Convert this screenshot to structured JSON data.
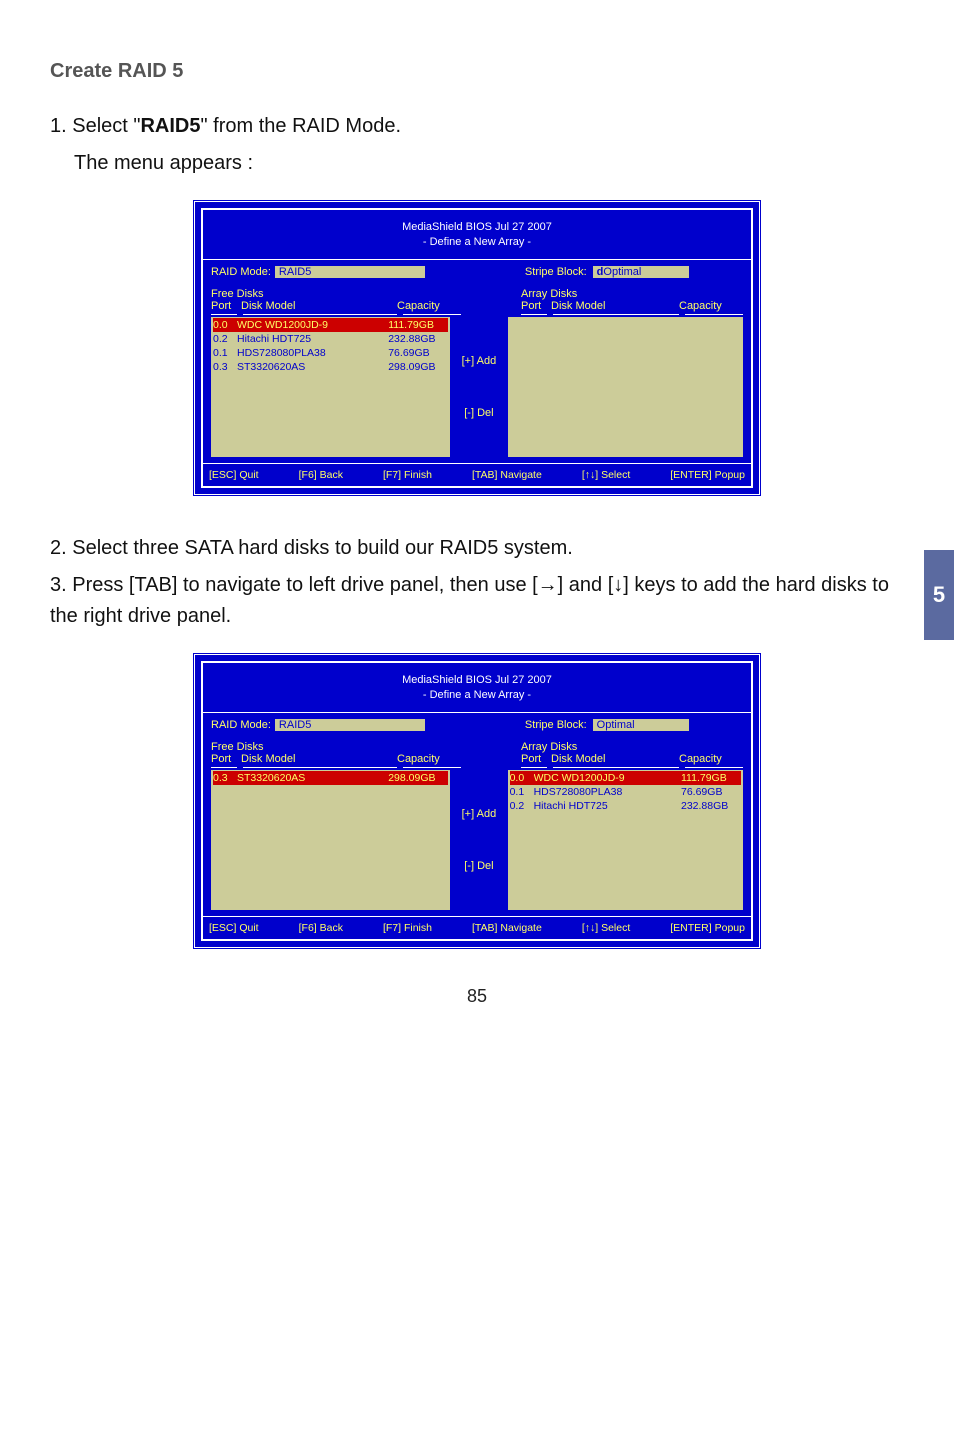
{
  "page": {
    "heading": "Create RAID 5",
    "step1_prefix": "1. Select \"",
    "step1_bold": "RAID5",
    "step1_suffix": "\" from the RAID Mode.",
    "step1_line2": "The menu appears :",
    "step2": "2. Select three SATA hard disks to build our RAID5 system.",
    "step3": "3. Press [TAB] to navigate to left drive panel, then use [→] and [↓] keys to add the hard disks to the right drive panel.",
    "tab_number": "5",
    "page_number": "85"
  },
  "bios_common": {
    "title_line1": "MediaShield BIOS   Jul 27 2007",
    "title_line2": "- Define a New Array -",
    "raid_mode_label": "RAID Mode:",
    "stripe_block_label": "Stripe Block:",
    "free_disks_label": "Free Disks",
    "array_disks_label": "Array Disks",
    "col_port": "Port",
    "col_model": "Disk Model",
    "col_capacity": "Capacity",
    "btn_add": "[+] Add",
    "btn_del": "[-] Del",
    "footer_esc": "[ESC] Quit",
    "footer_f6": "[F6] Back",
    "footer_f7": "[F7] Finish",
    "footer_tab": "[TAB] Navigate",
    "footer_arrows": "[↑↓] Select",
    "footer_enter": "[ENTER] Popup"
  },
  "bios1": {
    "raid_mode_value": "RAID5",
    "stripe_block_value": "Optimal",
    "stripe_cursor": "d",
    "free_disks": [
      {
        "port": "0.0",
        "model": "WDC WD1200JD-9",
        "cap": "111.79GB",
        "selected": true
      },
      {
        "port": "0.2",
        "model": "Hitachi HDT725",
        "cap": "232.88GB",
        "selected": false
      },
      {
        "port": "0.1",
        "model": "HDS728080PLA38",
        "cap": "76.69GB",
        "selected": false
      },
      {
        "port": "0.3",
        "model": "ST3320620AS",
        "cap": "298.09GB",
        "selected": false
      }
    ],
    "array_disks": []
  },
  "bios2": {
    "raid_mode_value": "RAID5",
    "stripe_block_value": "Optimal",
    "free_disks": [
      {
        "port": "0.3",
        "model": "ST3320620AS",
        "cap": "298.09GB",
        "selected": true
      }
    ],
    "array_disks": [
      {
        "port": "0.0",
        "model": "WDC WD1200JD-9",
        "cap": "111.79GB",
        "selected": true
      },
      {
        "port": "0.1",
        "model": "HDS728080PLA38",
        "cap": "76.69GB",
        "selected": false
      },
      {
        "port": "0.2",
        "model": "Hitachi HDT725",
        "cap": "232.88GB",
        "selected": false
      }
    ]
  },
  "colors": {
    "bios_bg": "#0000cc",
    "bios_panel": "#cccc99",
    "bios_yellow": "#ffff66",
    "bios_select_bg": "#cc0000",
    "tab_bg": "#5b6aa0"
  }
}
